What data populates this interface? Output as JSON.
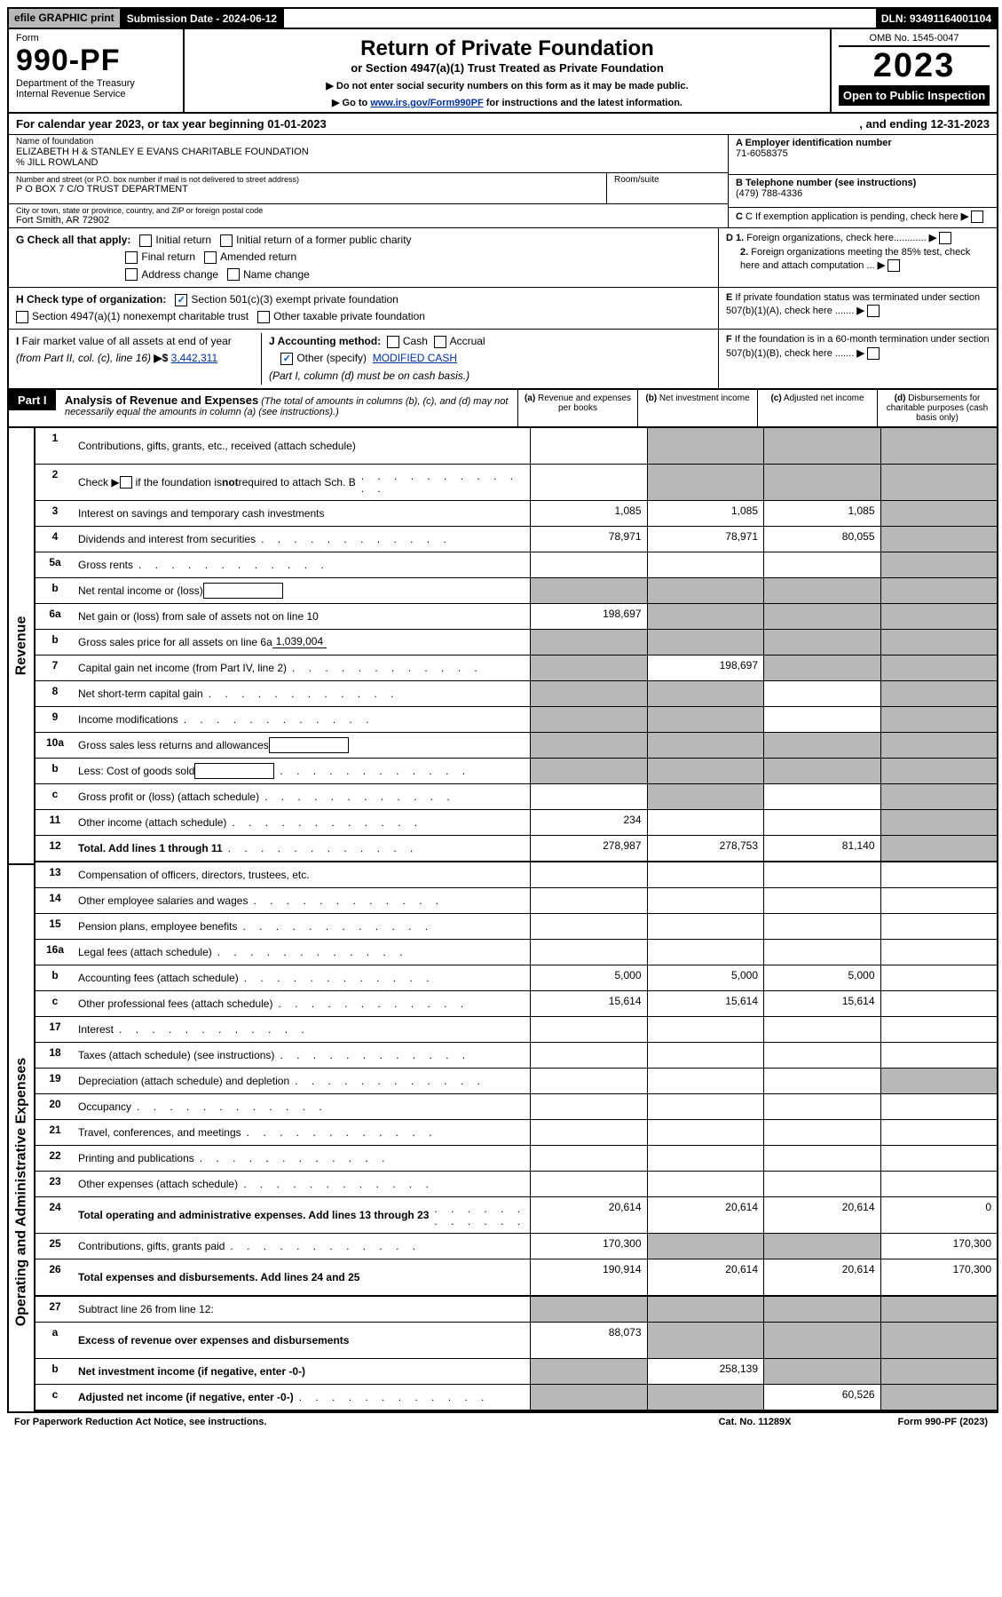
{
  "topbar": {
    "efile": "efile GRAPHIC print",
    "submission": "Submission Date - 2024-06-12",
    "dln": "DLN: 93491164001104"
  },
  "header": {
    "form": "Form",
    "formnum": "990-PF",
    "dept": "Department of the Treasury",
    "irs": "Internal Revenue Service",
    "title": "Return of Private Foundation",
    "subtitle": "or Section 4947(a)(1) Trust Treated as Private Foundation",
    "note1": "▶ Do not enter social security numbers on this form as it may be made public.",
    "note2_pre": "▶ Go to ",
    "note2_link": "www.irs.gov/Form990PF",
    "note2_post": " for instructions and the latest information.",
    "omb": "OMB No. 1545-0047",
    "year": "2023",
    "open": "Open to Public Inspection"
  },
  "cal": {
    "left": "For calendar year 2023, or tax year beginning 01-01-2023",
    "right": ", and ending 12-31-2023"
  },
  "org": {
    "name_lab": "Name of foundation",
    "name": "ELIZABETH H & STANLEY E EVANS CHARITABLE FOUNDATION",
    "co": "% JILL ROWLAND",
    "addr_lab": "Number and street (or P.O. box number if mail is not delivered to street address)",
    "addr": "P O BOX 7 C/O TRUST DEPARTMENT",
    "room_lab": "Room/suite",
    "city_lab": "City or town, state or province, country, and ZIP or foreign postal code",
    "city": "Fort Smith, AR  72902",
    "ein_lab": "A Employer identification number",
    "ein": "71-6058375",
    "tel_lab": "B Telephone number (see instructions)",
    "tel": "(479) 788-4336",
    "c": "C If exemption application is pending, check here",
    "d1": "D 1. Foreign organizations, check here............",
    "d2": "2. Foreign organizations meeting the 85% test, check here and attach computation ...",
    "e": "E If private foundation status was terminated under section 507(b)(1)(A), check here .......",
    "f": "F If the foundation is in a 60-month termination under section 507(b)(1)(B), check here ......."
  },
  "g": {
    "label": "G Check all that apply:",
    "o1": "Initial return",
    "o2": "Initial return of a former public charity",
    "o3": "Final return",
    "o4": "Amended return",
    "o5": "Address change",
    "o6": "Name change"
  },
  "h": {
    "label": "H Check type of organization:",
    "o1": "Section 501(c)(3) exempt private foundation",
    "o2": "Section 4947(a)(1) nonexempt charitable trust",
    "o3": "Other taxable private foundation"
  },
  "i": {
    "label": "I Fair market value of all assets at end of year (from Part II, col. (c), line 16) ▶$",
    "val": "3,442,311"
  },
  "j": {
    "label": "J Accounting method:",
    "o1": "Cash",
    "o2": "Accrual",
    "o3": "Other (specify)",
    "o3v": "MODIFIED CASH",
    "note": "(Part I, column (d) must be on cash basis.)"
  },
  "part1": {
    "tag": "Part I",
    "title": "Analysis of Revenue and Expenses",
    "note": "(The total of amounts in columns (b), (c), and (d) may not necessarily equal the amounts in column (a) (see instructions).)",
    "col_a": "(a) Revenue and expenses per books",
    "col_b": "(b) Net investment income",
    "col_c": "(c) Adjusted net income",
    "col_d": "(d) Disbursements for charitable purposes (cash basis only)"
  },
  "rot": {
    "rev": "Revenue",
    "exp": "Operating and Administrative Expenses"
  },
  "lines": [
    {
      "n": "1",
      "t": "Contributions, gifts, grants, etc., received (attach schedule)",
      "a": "",
      "b": "G",
      "c": "G",
      "d": "G",
      "tall": true
    },
    {
      "n": "2",
      "t": "Check ▶ ☐ if the foundation is not required to attach Sch. B",
      "dots": true,
      "a": "",
      "b": "G",
      "c": "G",
      "d": "G",
      "tall": true,
      "html": true
    },
    {
      "n": "3",
      "t": "Interest on savings and temporary cash investments",
      "a": "1,085",
      "b": "1,085",
      "c": "1,085",
      "d": "G"
    },
    {
      "n": "4",
      "t": "Dividends and interest from securities",
      "dots": true,
      "a": "78,971",
      "b": "78,971",
      "c": "80,055",
      "d": "G"
    },
    {
      "n": "5a",
      "t": "Gross rents",
      "dots": true,
      "a": "",
      "b": "",
      "c": "",
      "d": "G"
    },
    {
      "n": "b",
      "t": "Net rental income or (loss)",
      "sub": true,
      "a": "G",
      "b": "G",
      "c": "G",
      "d": "G"
    },
    {
      "n": "6a",
      "t": "Net gain or (loss) from sale of assets not on line 10",
      "a": "198,697",
      "b": "G",
      "c": "G",
      "d": "G"
    },
    {
      "n": "b",
      "t": "Gross sales price for all assets on line 6a",
      "subv": "1,039,004",
      "a": "G",
      "b": "G",
      "c": "G",
      "d": "G"
    },
    {
      "n": "7",
      "t": "Capital gain net income (from Part IV, line 2)",
      "dots": true,
      "a": "G",
      "b": "198,697",
      "c": "G",
      "d": "G"
    },
    {
      "n": "8",
      "t": "Net short-term capital gain",
      "dots": true,
      "a": "G",
      "b": "G",
      "c": "",
      "d": "G"
    },
    {
      "n": "9",
      "t": "Income modifications",
      "dots": true,
      "a": "G",
      "b": "G",
      "c": "",
      "d": "G"
    },
    {
      "n": "10a",
      "t": "Gross sales less returns and allowances",
      "sub": true,
      "a": "G",
      "b": "G",
      "c": "G",
      "d": "G"
    },
    {
      "n": "b",
      "t": "Less: Cost of goods sold",
      "dots": true,
      "sub": true,
      "a": "G",
      "b": "G",
      "c": "G",
      "d": "G"
    },
    {
      "n": "c",
      "t": "Gross profit or (loss) (attach schedule)",
      "dots": true,
      "a": "",
      "b": "G",
      "c": "",
      "d": "G"
    },
    {
      "n": "11",
      "t": "Other income (attach schedule)",
      "dots": true,
      "a": "234",
      "b": "",
      "c": "",
      "d": "G"
    },
    {
      "n": "12",
      "t": "Total. Add lines 1 through 11",
      "dots": true,
      "bold": true,
      "a": "278,987",
      "b": "278,753",
      "c": "81,140",
      "d": "G",
      "b2": true
    },
    {
      "n": "13",
      "t": "Compensation of officers, directors, trustees, etc.",
      "a": "",
      "b": "",
      "c": "",
      "d": ""
    },
    {
      "n": "14",
      "t": "Other employee salaries and wages",
      "dots": true,
      "a": "",
      "b": "",
      "c": "",
      "d": ""
    },
    {
      "n": "15",
      "t": "Pension plans, employee benefits",
      "dots": true,
      "a": "",
      "b": "",
      "c": "",
      "d": ""
    },
    {
      "n": "16a",
      "t": "Legal fees (attach schedule)",
      "dots": true,
      "a": "",
      "b": "",
      "c": "",
      "d": ""
    },
    {
      "n": "b",
      "t": "Accounting fees (attach schedule)",
      "dots": true,
      "a": "5,000",
      "b": "5,000",
      "c": "5,000",
      "d": ""
    },
    {
      "n": "c",
      "t": "Other professional fees (attach schedule)",
      "dots": true,
      "a": "15,614",
      "b": "15,614",
      "c": "15,614",
      "d": ""
    },
    {
      "n": "17",
      "t": "Interest",
      "dots": true,
      "a": "",
      "b": "",
      "c": "",
      "d": ""
    },
    {
      "n": "18",
      "t": "Taxes (attach schedule) (see instructions)",
      "dots": true,
      "a": "",
      "b": "",
      "c": "",
      "d": ""
    },
    {
      "n": "19",
      "t": "Depreciation (attach schedule) and depletion",
      "dots": true,
      "a": "",
      "b": "",
      "c": "",
      "d": "G"
    },
    {
      "n": "20",
      "t": "Occupancy",
      "dots": true,
      "a": "",
      "b": "",
      "c": "",
      "d": ""
    },
    {
      "n": "21",
      "t": "Travel, conferences, and meetings",
      "dots": true,
      "a": "",
      "b": "",
      "c": "",
      "d": ""
    },
    {
      "n": "22",
      "t": "Printing and publications",
      "dots": true,
      "a": "",
      "b": "",
      "c": "",
      "d": ""
    },
    {
      "n": "23",
      "t": "Other expenses (attach schedule)",
      "dots": true,
      "a": "",
      "b": "",
      "c": "",
      "d": ""
    },
    {
      "n": "24",
      "t": "Total operating and administrative expenses. Add lines 13 through 23",
      "dots": true,
      "bold": true,
      "a": "20,614",
      "b": "20,614",
      "c": "20,614",
      "d": "0",
      "tall": true
    },
    {
      "n": "25",
      "t": "Contributions, gifts, grants paid",
      "dots": true,
      "a": "170,300",
      "b": "G",
      "c": "G",
      "d": "170,300"
    },
    {
      "n": "26",
      "t": "Total expenses and disbursements. Add lines 24 and 25",
      "bold": true,
      "a": "190,914",
      "b": "20,614",
      "c": "20,614",
      "d": "170,300",
      "tall": true,
      "b2": true
    },
    {
      "n": "27",
      "t": "Subtract line 26 from line 12:",
      "a": "G",
      "b": "G",
      "c": "G",
      "d": "G"
    },
    {
      "n": "a",
      "t": "Excess of revenue over expenses and disbursements",
      "bold": true,
      "a": "88,073",
      "b": "G",
      "c": "G",
      "d": "G",
      "tall": true
    },
    {
      "n": "b",
      "t": "Net investment income (if negative, enter -0-)",
      "bold": true,
      "a": "G",
      "b": "258,139",
      "c": "G",
      "d": "G"
    },
    {
      "n": "c",
      "t": "Adjusted net income (if negative, enter -0-)",
      "dots": true,
      "bold": true,
      "a": "G",
      "b": "G",
      "c": "60,526",
      "d": "G",
      "b2": true
    }
  ],
  "footer": {
    "l": "For Paperwork Reduction Act Notice, see instructions.",
    "c": "Cat. No. 11289X",
    "r": "Form 990-PF (2023)"
  }
}
